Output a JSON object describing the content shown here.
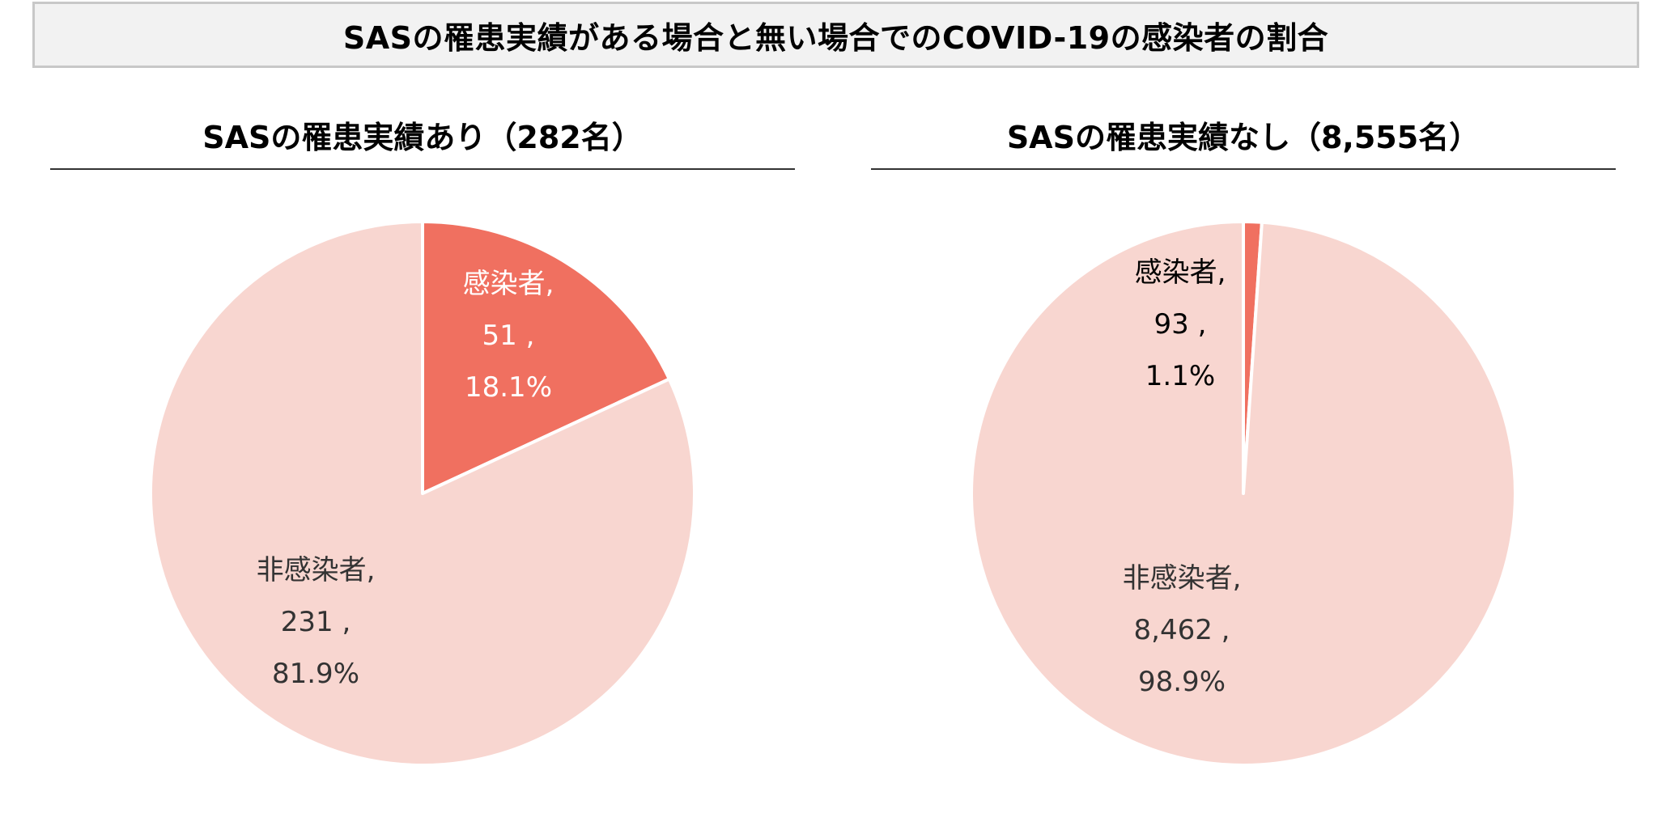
{
  "header": {
    "title": "SASの罹患実績がある場合と無い場合でのCOVID-19の感染者の割合"
  },
  "chart_data": [
    {
      "type": "pie",
      "title": "SASの罹患実績あり（282名）",
      "slices": [
        {
          "category": "感染者",
          "value": 51,
          "value_label": "51 ,",
          "percent": 18.1,
          "percent_label": "18.1%",
          "color": "#f07060",
          "label_color": "#ffffff"
        },
        {
          "category": "非感染者",
          "value": 231,
          "value_label": "231 ,",
          "percent": 81.9,
          "percent_label": "81.9%",
          "color": "#f8d6d0",
          "label_color": "#333333"
        }
      ]
    },
    {
      "type": "pie",
      "title": "SASの罹患実績なし（8,555名）",
      "slices": [
        {
          "category": "感染者",
          "value": 93,
          "value_label": "93 ,",
          "percent": 1.1,
          "percent_label": "1.1%",
          "color": "#f07060",
          "label_color": "#000000"
        },
        {
          "category": "非感染者",
          "value": 8462,
          "value_label": "8,462 ,",
          "percent": 98.9,
          "percent_label": "98.9%",
          "color": "#f8d6d0",
          "label_color": "#333333"
        }
      ]
    }
  ]
}
